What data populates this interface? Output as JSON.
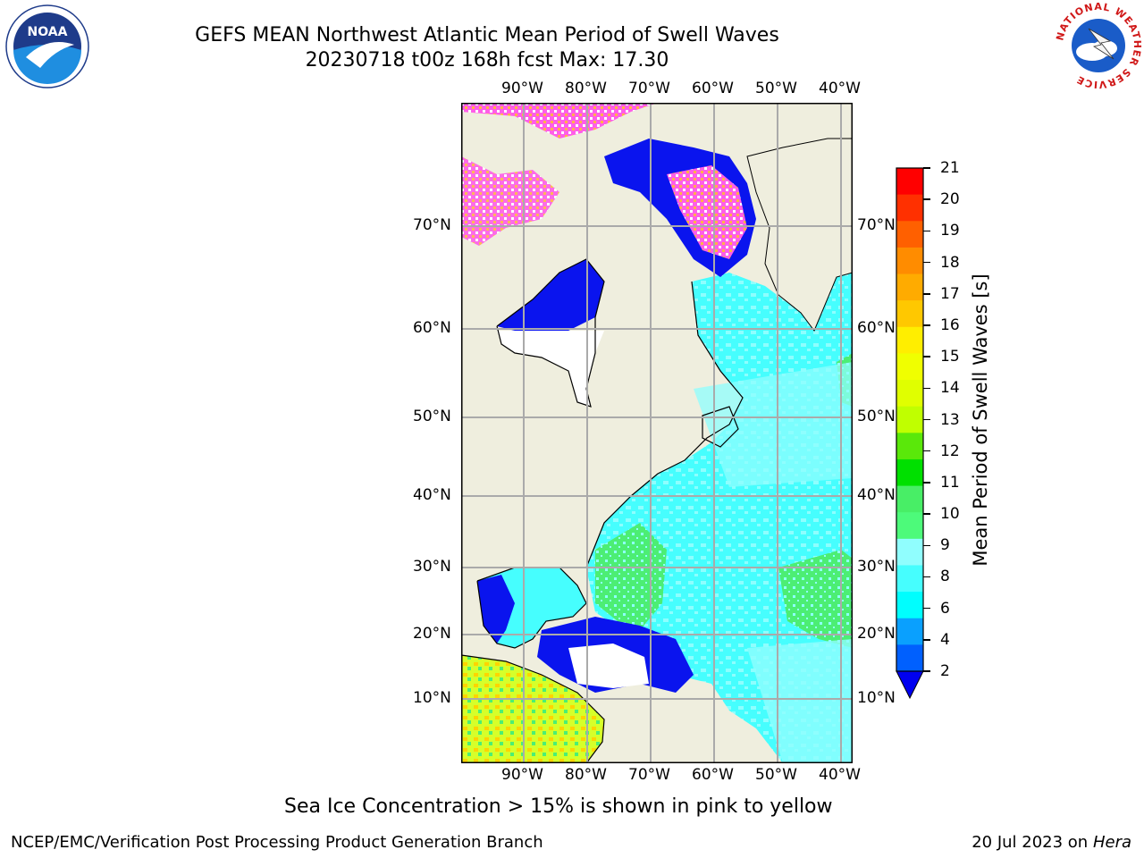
{
  "header": {
    "title_line1": "GEFS MEAN Northwest Atlantic Mean Period of Swell Waves",
    "title_line2": "20230718 t00z 168h fcst   Max: 17.30"
  },
  "logos": {
    "left": "NOAA",
    "right": "NATIONAL WEATHER SERVICE"
  },
  "map": {
    "lon_labels": [
      "90°W",
      "80°W",
      "70°W",
      "60°W",
      "50°W",
      "40°W"
    ],
    "lat_labels": [
      "70°N",
      "60°N",
      "50°N",
      "40°N",
      "30°N",
      "20°N",
      "10°N"
    ],
    "colors": {
      "land": "#efeede",
      "ocean_cyan": "#46fefe",
      "ocean_lightcyan": "#8efefe",
      "ocean_green": "#4cee74",
      "deep_blue": "#0a14ee",
      "sea_ice_pink": "#ff5ee8",
      "grid": "#aaaaaa"
    }
  },
  "colorbar": {
    "label": "Mean Period of Swell Waves [s]",
    "ticks": [
      "21",
      "20",
      "19",
      "18",
      "17",
      "16",
      "15",
      "14",
      "13",
      "12",
      "11",
      "10",
      "9",
      "8",
      "6",
      "4",
      "2"
    ],
    "bands": [
      "#ff0000",
      "#ff3000",
      "#ff6000",
      "#ff8c00",
      "#ffab00",
      "#ffc800",
      "#ffee00",
      "#f0ff00",
      "#e0ff00",
      "#c0ff00",
      "#5ae80a",
      "#00e000",
      "#48ee66",
      "#4dfa7a",
      "#90fefe",
      "#46fefe",
      "#00fefe",
      "#0aa0fe",
      "#0060fe"
    ],
    "under_color": "#0000f0"
  },
  "footer": {
    "sea_ice_note": "Sea Ice Concentration > 15% is shown in pink to yellow",
    "credit": "NCEP/EMC/Verification Post Processing Product Generation Branch",
    "date": "20 Jul 2023 on",
    "host": "Hera"
  }
}
